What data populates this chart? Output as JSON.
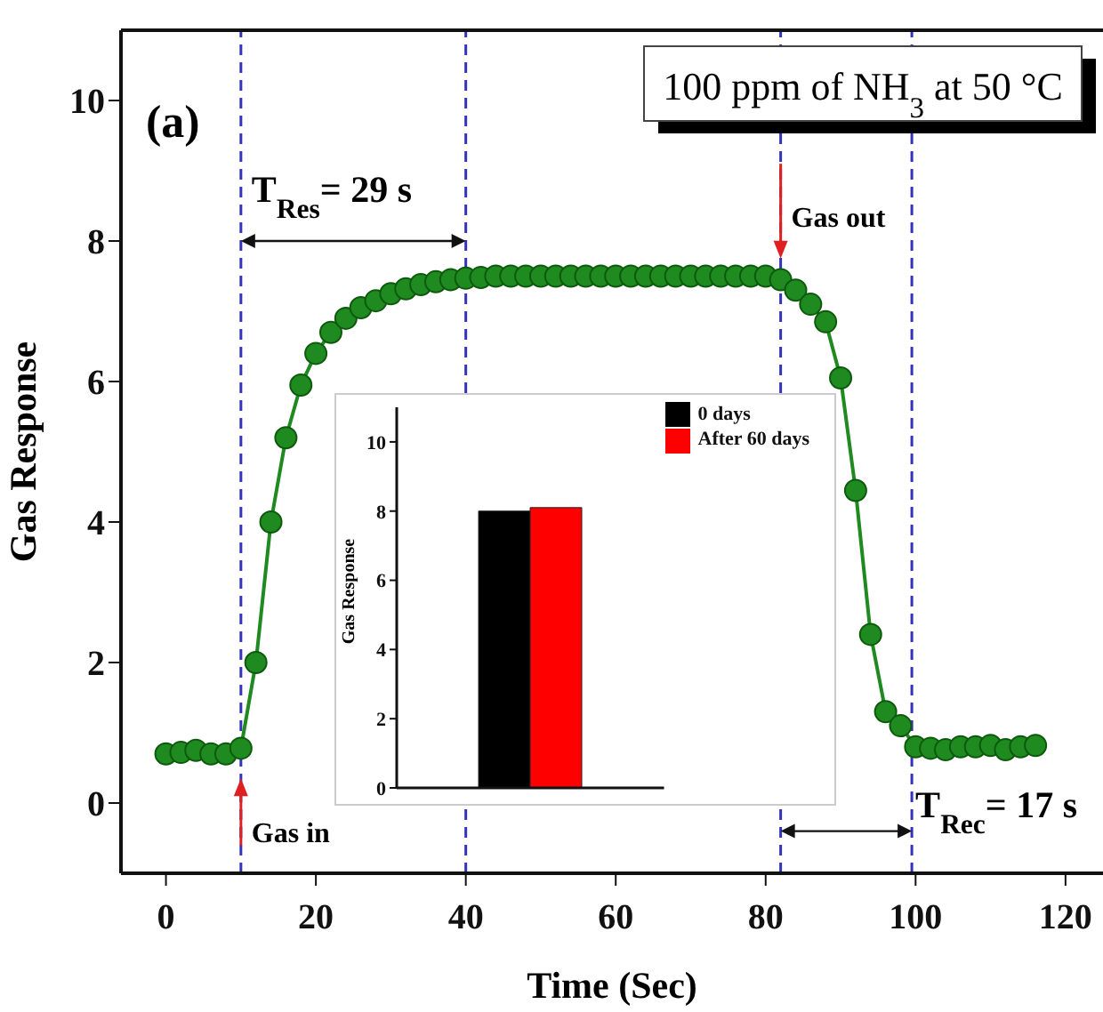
{
  "chart_data": [
    {
      "type": "line",
      "title": "100 ppm of NH$_{3}$ at 50 °C",
      "xlabel": "Time (Sec)",
      "ylabel": "Gas Response",
      "x": [
        0,
        2,
        4,
        6,
        8,
        10,
        12,
        14,
        16,
        18,
        20,
        22,
        24,
        26,
        28,
        30,
        32,
        34,
        36,
        38,
        40,
        42,
        44,
        46,
        48,
        50,
        52,
        54,
        56,
        58,
        60,
        62,
        64,
        66,
        68,
        70,
        72,
        74,
        76,
        78,
        80,
        82,
        84,
        86,
        88,
        90,
        92,
        94,
        96,
        98,
        100,
        102,
        104,
        106,
        108,
        110,
        112,
        114,
        116
      ],
      "series": [
        {
          "color": "#1f8a1f",
          "values": [
            0.7,
            0.72,
            0.75,
            0.7,
            0.7,
            0.78,
            2.0,
            4.0,
            5.2,
            5.95,
            6.4,
            6.7,
            6.9,
            7.05,
            7.15,
            7.25,
            7.32,
            7.38,
            7.42,
            7.45,
            7.47,
            7.48,
            7.5,
            7.5,
            7.5,
            7.5,
            7.5,
            7.5,
            7.5,
            7.5,
            7.5,
            7.5,
            7.5,
            7.5,
            7.5,
            7.5,
            7.5,
            7.5,
            7.5,
            7.5,
            7.5,
            7.45,
            7.3,
            7.1,
            6.85,
            6.05,
            4.45,
            2.4,
            1.3,
            1.1,
            0.8,
            0.78,
            0.76,
            0.8,
            0.8,
            0.82,
            0.76,
            0.8,
            0.82
          ]
        }
      ],
      "marker": "circle",
      "line_style": "solid",
      "xlim": [
        -6,
        125
      ],
      "xticks": [
        0,
        20,
        40,
        60,
        80,
        100,
        120
      ],
      "ylim": [
        -1,
        11
      ],
      "yticks": [
        0,
        2,
        4,
        6,
        8,
        10
      ],
      "ref_lines": [
        {
          "axis": "x",
          "value": 10,
          "color": "#3333bb",
          "line_style": "dashed"
        },
        {
          "axis": "x",
          "value": 40,
          "color": "#3333bb",
          "line_style": "dashed"
        },
        {
          "axis": "x",
          "value": 82,
          "color": "#3333bb",
          "line_style": "dashed"
        },
        {
          "axis": "x",
          "value": 99.5,
          "color": "#3333bb",
          "line_style": "dashed"
        }
      ],
      "annotations": [
        "(a)",
        {
          "text": "T$_{Res}$= 29 s",
          "x": 10,
          "y": 8
        },
        {
          "text": "T$_{Rec}$= 17 s",
          "x": 99.5,
          "y": -0.4
        },
        {
          "text": "Gas in",
          "x": 10,
          "y": -0.4
        },
        {
          "text": "Gas out",
          "x": 82,
          "y": 8.2
        }
      ]
    },
    {
      "type": "bar",
      "ylabel": "Gas Response",
      "categories": [
        null
      ],
      "series": [
        {
          "name": "0 days",
          "color": "#000000",
          "values": [
            8.0
          ]
        },
        {
          "name": "After 60 days",
          "color": "#ff0000",
          "values": [
            8.1
          ]
        }
      ],
      "ylim": [
        0,
        11
      ],
      "yticks": [
        0,
        2,
        4,
        6,
        8,
        10
      ],
      "tick_labels": "y",
      "legend": "top right"
    }
  ]
}
